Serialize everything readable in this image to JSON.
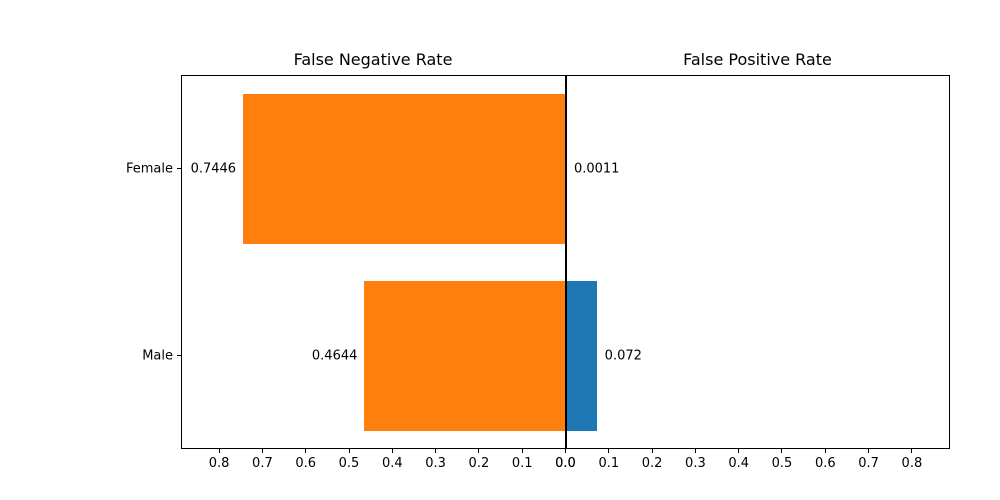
{
  "chart_data": {
    "type": "bar",
    "orientation": "horizontal",
    "layout": "back-to-back",
    "categories": [
      "Female",
      "Male"
    ],
    "panels": [
      {
        "title": "False Negative Rate",
        "side": "left",
        "bar_color": "#ff7f0e",
        "values": [
          0.7446,
          0.4644
        ],
        "value_labels": [
          "0.7446",
          "0.4644"
        ],
        "xtick_labels": [
          "0.8",
          "0.7",
          "0.6",
          "0.5",
          "0.4",
          "0.3",
          "0.2",
          "0.1",
          "0.0"
        ]
      },
      {
        "title": "False Positive Rate",
        "side": "right",
        "bar_color": "#1f77b4",
        "values": [
          0.0011,
          0.072
        ],
        "value_labels": [
          "0.0011",
          "0.072"
        ],
        "xtick_labels": [
          "0.0",
          "0.1",
          "0.2",
          "0.3",
          "0.4",
          "0.5",
          "0.6",
          "0.7",
          "0.8"
        ]
      }
    ],
    "xlim": [
      0,
      0.888
    ],
    "bar_height_frac": 0.8,
    "grid": false,
    "axis_color": "#000000",
    "text_color": "#000000",
    "background": "#ffffff"
  }
}
